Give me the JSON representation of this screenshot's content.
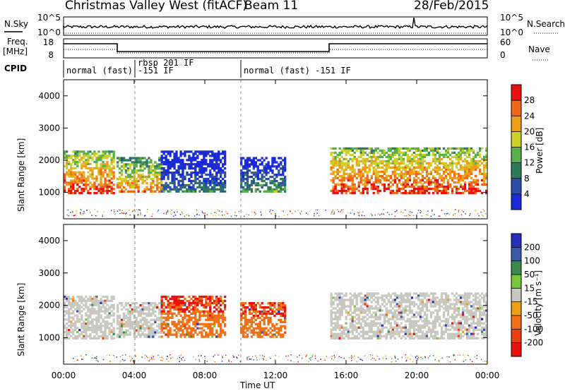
{
  "header": {
    "title": "Christmas Valley West (fitACF)",
    "beam": "Beam 11",
    "date": "28/Feb/2015"
  },
  "nsky_panel": {
    "left_label": "N.Sky",
    "right_label": "N.Search",
    "ticks_left": [
      "10^5",
      "10^0"
    ],
    "ticks_right": [
      "10^5",
      "10^0"
    ]
  },
  "freq_panel": {
    "left_label_1": "Freq.",
    "left_label_2": "[MHz]",
    "right_label": "Nave",
    "ticks_left": [
      "18",
      "8"
    ],
    "ticks_right": [
      "60",
      "0"
    ]
  },
  "cpid": {
    "label": "CPID",
    "modes": [
      "normal (fast) -151 IF",
      "rbsp 201 IF",
      "normal (fast) -151 IF"
    ]
  },
  "chart_data": [
    {
      "type": "heatmap",
      "name": "power",
      "ylabel": "Slant Range [km]",
      "yticks": [
        1000,
        2000,
        3000,
        4000
      ],
      "ylim": [
        180,
        4500
      ],
      "colorbar_label": "Power [dB]",
      "colorbar_ticks": [
        "4",
        "8",
        "12",
        "16",
        "20",
        "24",
        "28"
      ],
      "colors": [
        "#1a2bd6",
        "#2e4fa8",
        "#2e7a5a",
        "#58b04a",
        "#cdd02a",
        "#f0a018",
        "#f06818",
        "#e81010"
      ],
      "echo_regions": [
        {
          "t": [
            0.0,
            2.9
          ],
          "range_km": [
            950,
            2300
          ],
          "power_db": 26
        },
        {
          "t": [
            3.0,
            5.6
          ],
          "range_km": [
            1000,
            2100
          ],
          "power_db": 22
        },
        {
          "t": [
            5.5,
            9.2
          ],
          "range_km": [
            1000,
            2300
          ],
          "power_db": 8
        },
        {
          "t": [
            10.0,
            12.6
          ],
          "range_km": [
            1000,
            2100
          ],
          "power_db": 10
        },
        {
          "t": [
            15.1,
            24.0
          ],
          "range_km": [
            950,
            2400
          ],
          "power_db": 26
        }
      ]
    },
    {
      "type": "heatmap",
      "name": "velocity",
      "ylabel": "Slant Range [km]",
      "yticks": [
        1000,
        2000,
        3000,
        4000
      ],
      "ylim": [
        180,
        4500
      ],
      "colorbar_label": "Velocity [m s⁻¹]",
      "colorbar_ticks": [
        "200",
        "100",
        "50",
        "15",
        "-15",
        "-50",
        "-100",
        "-200"
      ],
      "colors": [
        "#2430b8",
        "#3a5aa8",
        "#3a8a50",
        "#78c83a",
        "#c8c8c0",
        "#f0a018",
        "#f07018",
        "#e84010",
        "#e81010"
      ],
      "echo_regions": [
        {
          "t": [
            0.0,
            2.9
          ],
          "range_km": [
            950,
            2300
          ],
          "velocity": 0
        },
        {
          "t": [
            3.0,
            5.6
          ],
          "range_km": [
            1000,
            2100
          ],
          "velocity": 0
        },
        {
          "t": [
            5.5,
            9.2
          ],
          "range_km": [
            1000,
            2300
          ],
          "velocity": -80
        },
        {
          "t": [
            10.0,
            12.6
          ],
          "range_km": [
            1000,
            2100
          ],
          "velocity": -60
        },
        {
          "t": [
            15.1,
            24.0
          ],
          "range_km": [
            950,
            2400
          ],
          "velocity": 0
        }
      ]
    }
  ],
  "x_axis": {
    "label": "Time UT",
    "ticks": [
      "00:00",
      "04:00",
      "08:00",
      "12:00",
      "16:00",
      "20:00",
      "00:00"
    ]
  }
}
